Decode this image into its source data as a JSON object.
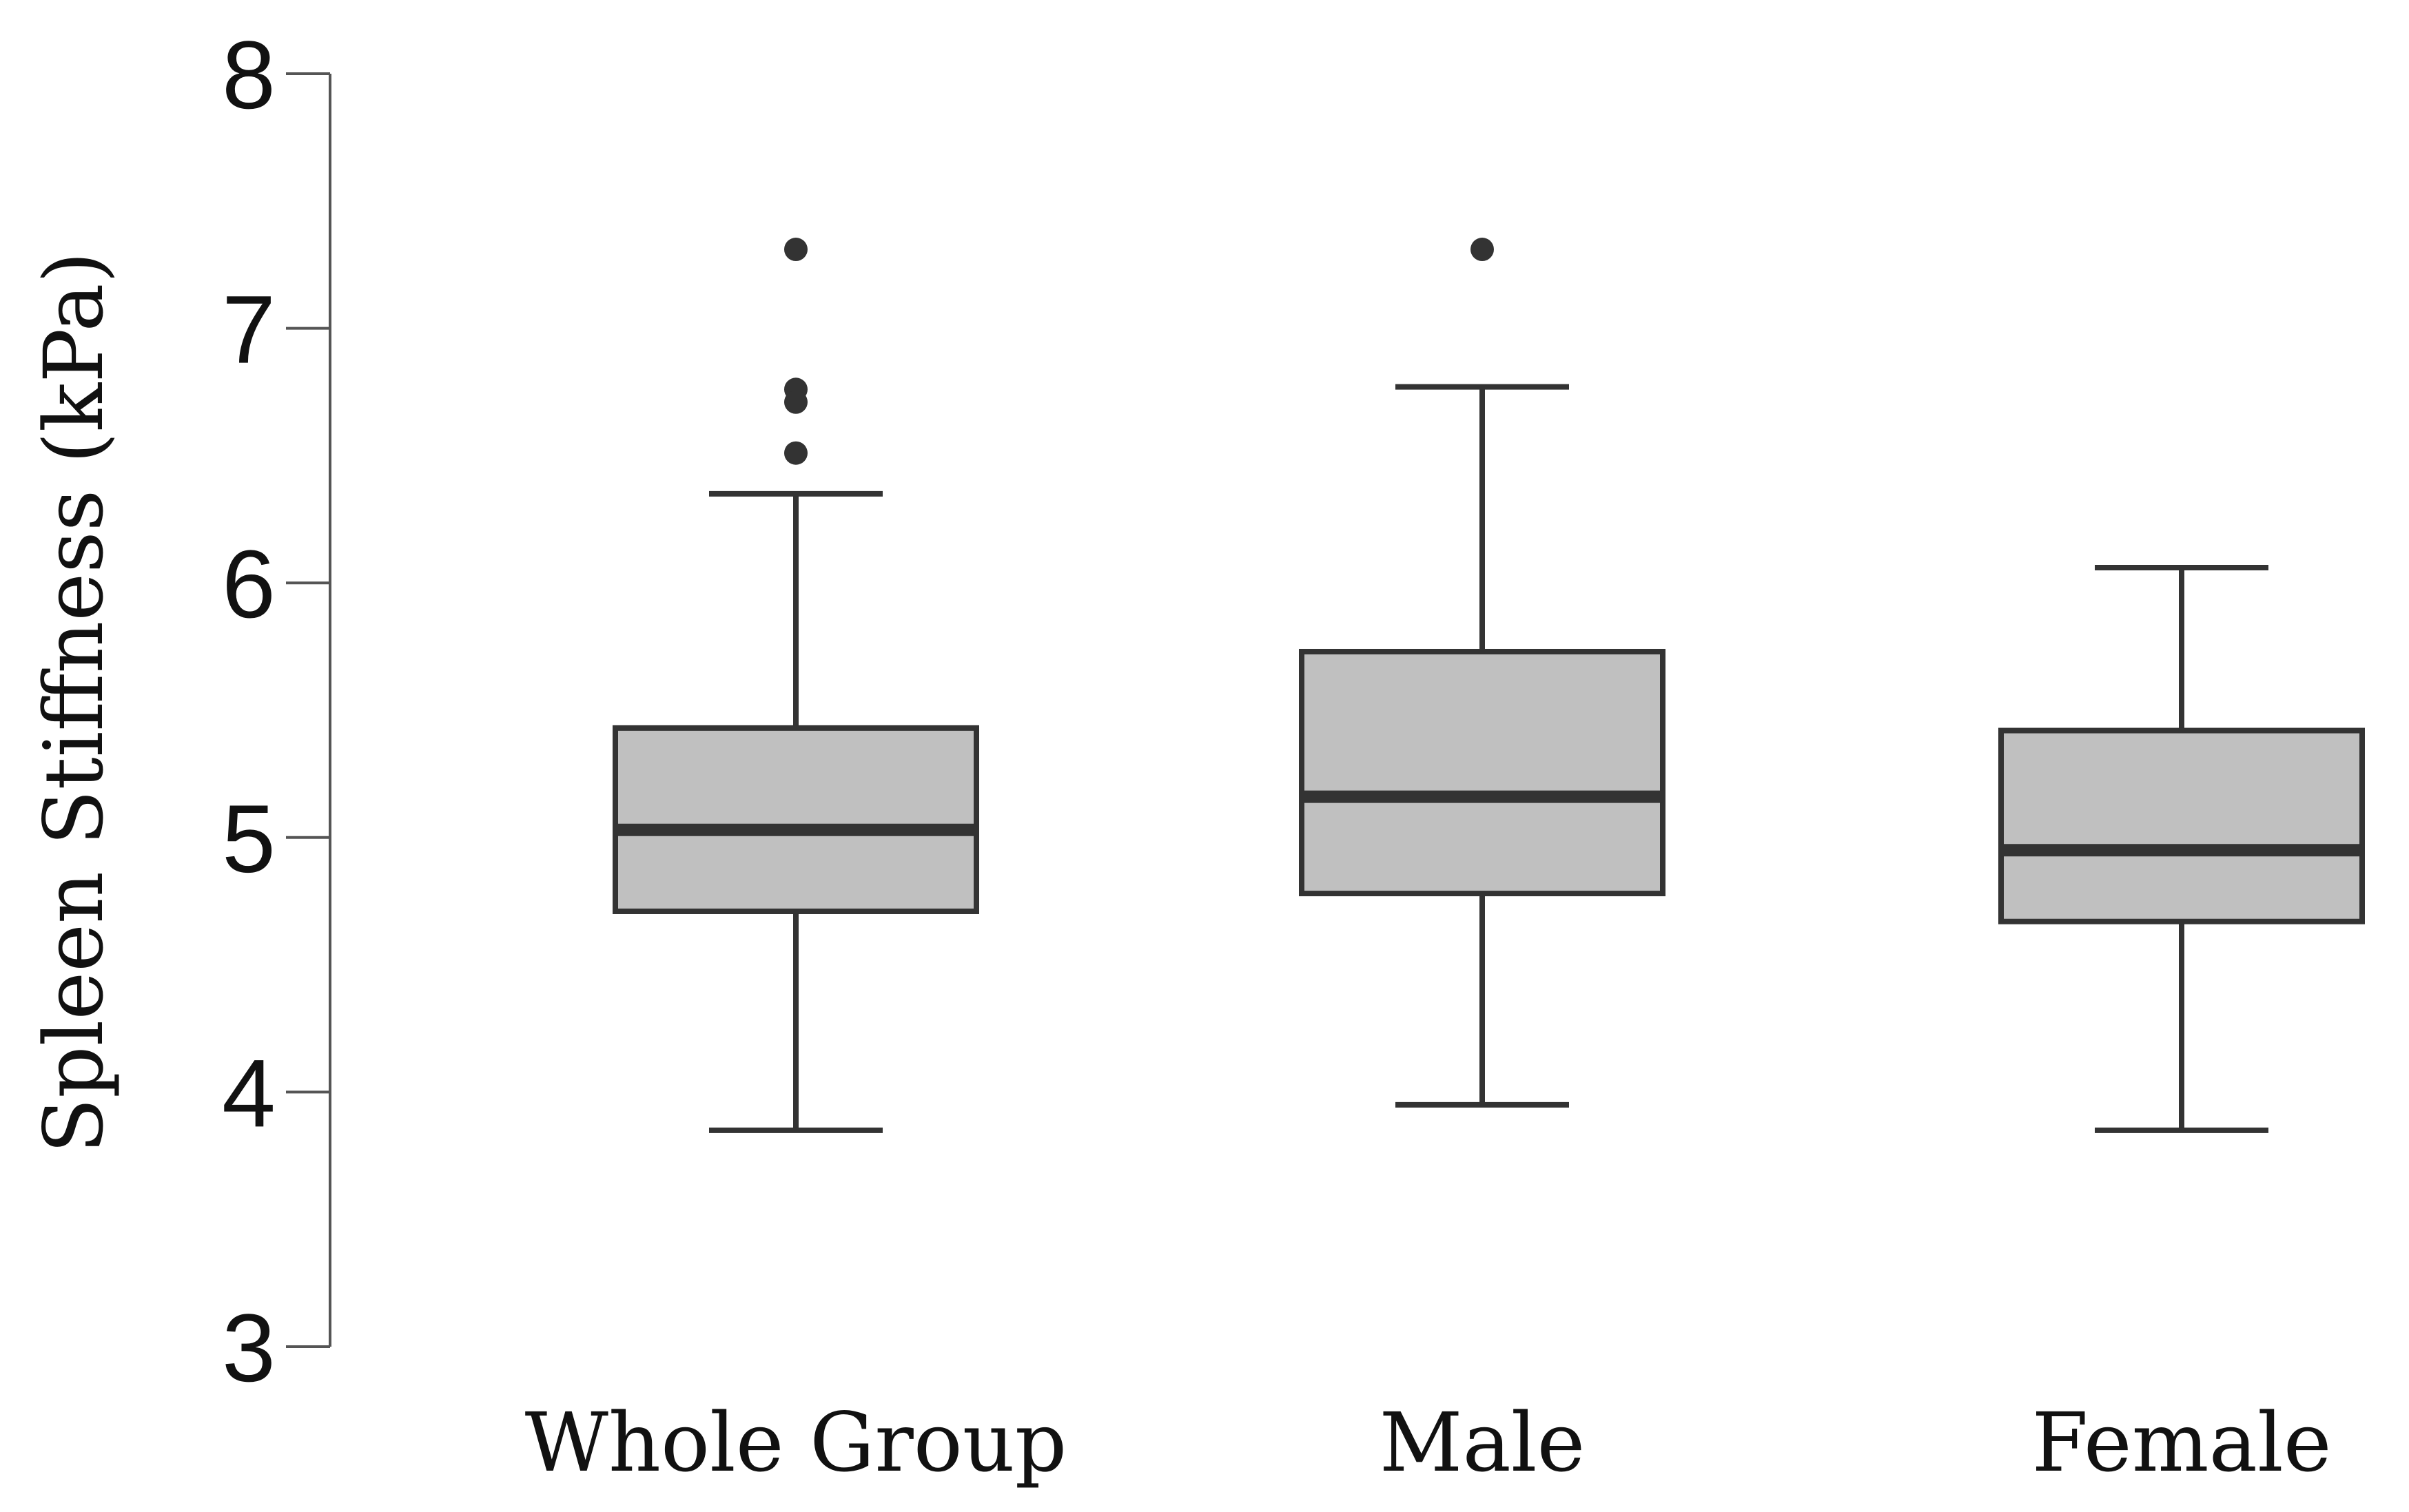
{
  "chart_data": {
    "type": "boxplot",
    "title": "",
    "xlabel": "",
    "ylabel": "Spleen Stiffness (kPa)",
    "ylim": [
      3,
      8
    ],
    "yticks": [
      3,
      4,
      5,
      6,
      7,
      8
    ],
    "grid": false,
    "categories": [
      "Whole Group",
      "Male",
      "Female"
    ],
    "series": [
      {
        "category": "Whole Group",
        "whisker_low": 3.85,
        "q1": 4.71,
        "median": 5.03,
        "q3": 5.43,
        "whisker_high": 6.35,
        "outliers": [
          7.31,
          6.76,
          6.71,
          6.51
        ]
      },
      {
        "category": "Male",
        "whisker_low": 3.95,
        "q1": 4.78,
        "median": 5.16,
        "q3": 5.73,
        "whisker_high": 6.77,
        "outliers": [
          7.31
        ]
      },
      {
        "category": "Female",
        "whisker_low": 3.85,
        "q1": 4.67,
        "median": 4.95,
        "q3": 5.42,
        "whisker_high": 6.06,
        "outliers": []
      }
    ],
    "colors": {
      "box_fill": "#c0c0c0",
      "stroke": "#333333",
      "axis": "#555555",
      "point": "#333333"
    }
  }
}
